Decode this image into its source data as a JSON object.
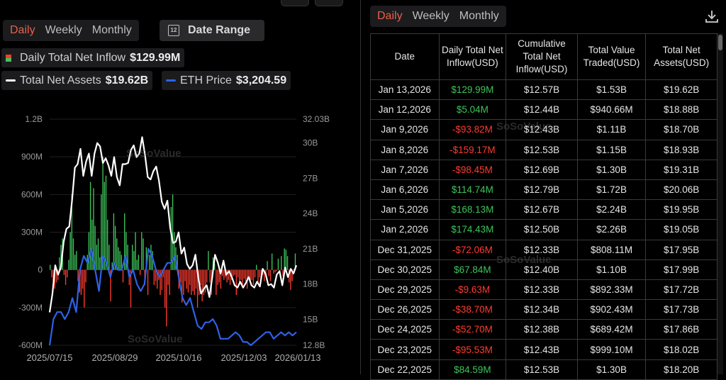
{
  "left_tabs": [
    "Daily",
    "Weekly",
    "Monthly"
  ],
  "right_tabs": [
    "Daily",
    "Weekly",
    "Monthly"
  ],
  "date_range_label": "Date Range",
  "legend": {
    "inflow_label": "Daily Total Net Inflow",
    "inflow_value": "$129.99M",
    "assets_label": "Total Net Assets",
    "assets_value": "$19.62B",
    "eth_label": "ETH Price",
    "eth_value": "$3,204.59"
  },
  "colors": {
    "positive": "#3ec45a",
    "negative": "#ff3b30",
    "eth_line": "#2e62e6",
    "assets_line": "#ffffff",
    "accent": "#e8604c"
  },
  "watermark": "SoSoValue",
  "chart_data": {
    "type": "bar+line",
    "x_ticks": [
      "2025/07/15",
      "2025/08/29",
      "2025/10/16",
      "2025/12/03",
      "2026/01/13"
    ],
    "y_left_ticks": [
      "1.2B",
      "900M",
      "600M",
      "300M",
      "0",
      "-300M",
      "-600M"
    ],
    "y_left_range": [
      -600,
      1200
    ],
    "y_right_ticks": [
      "32.03B",
      "30B",
      "27B",
      "24B",
      "21B",
      "18B",
      "15B",
      "12.8B"
    ],
    "y_right_range": [
      12.8,
      32.03
    ],
    "daily_net_inflow_musd": [
      40,
      -60,
      -90,
      -150,
      -100,
      -80,
      100,
      200,
      250,
      -40,
      -120,
      -60,
      80,
      300,
      600,
      250,
      120,
      150,
      -90,
      -180,
      -200,
      -150,
      -300,
      -100,
      120,
      300,
      700,
      400,
      650,
      350,
      200,
      250,
      100,
      600,
      900,
      700,
      750,
      400,
      200,
      -250,
      60,
      450,
      350,
      250,
      180,
      150,
      120,
      -100,
      450,
      300,
      200,
      -120,
      -300,
      200,
      150,
      300,
      80,
      120,
      -40,
      300,
      250,
      -120,
      180,
      -200,
      120,
      200,
      150,
      -120,
      -90,
      -150,
      -80,
      -200,
      -160,
      -60,
      -300,
      -450,
      -120,
      -200,
      500,
      600,
      300,
      180,
      120,
      -150,
      -100,
      -260,
      -200,
      -90,
      -150,
      -180,
      -120,
      -200,
      -170,
      -200,
      -150,
      -300,
      -200,
      -120,
      -250,
      -200,
      -180,
      -100,
      150,
      -100,
      -200,
      100,
      50,
      -200,
      -120,
      -100,
      -150,
      -50,
      -80,
      -60,
      -100,
      -80,
      -120,
      -80,
      -50,
      -40,
      -200,
      -60,
      -100,
      -80,
      -120,
      -70,
      -90,
      -150,
      -60,
      -90,
      -80,
      -120,
      -60,
      40,
      -110,
      -60,
      -80,
      -40,
      -90,
      -50,
      70,
      -50,
      -90,
      130,
      -30,
      -20,
      -10,
      90,
      -10,
      110,
      -50,
      170,
      160,
      110,
      -100,
      -160,
      -90,
      5,
      130
    ],
    "total_net_assets_b": [
      15.6,
      17.2,
      19.6,
      18.8,
      19.4,
      21.6,
      22.7,
      22.9,
      25.1,
      27.9,
      28.2,
      29.5,
      27.2,
      28.4,
      29.1,
      27.2,
      29.1,
      30.0,
      29.7,
      28.3,
      28.7,
      28.1,
      27.2,
      28.8,
      27.1,
      26.4,
      28.2,
      28.2,
      28.3,
      29.4,
      29.8,
      28.8,
      29.1,
      30.5,
      29.0,
      27.1,
      26.9,
      27.6,
      28.0,
      26.8,
      25.0,
      24.4,
      25.1,
      22.8,
      21.5,
      21.6,
      22.4,
      20.6,
      21.1,
      19.7,
      19.3,
      19.6,
      20.5,
      18.6,
      17.2,
      17.6,
      17.9,
      16.9,
      18.6,
      20.5,
      19.8,
      18.9,
      20.0,
      18.8,
      19.1,
      18.6,
      17.9,
      17.7,
      18.2,
      17.7,
      18.1,
      18.6,
      17.9,
      17.7,
      18.2,
      17.8,
      19.3,
      18.9,
      17.9,
      18.0,
      17.7,
      18.8,
      19.1,
      17.9,
      19.4,
      18.6,
      19.3,
      18.9,
      19.6
    ],
    "eth_price_k": [
      2.8,
      3.6,
      3.7,
      3.7,
      3.6,
      3.7,
      3.9,
      3.7,
      4.3,
      4.5,
      4.4,
      4.6,
      4.3,
      4.0,
      4.5,
      4.4,
      4.2,
      4.4,
      4.3,
      4.3,
      4.5,
      4.2,
      4.3,
      4.1,
      4.0,
      4.1,
      4.6,
      4.5,
      4.3,
      4.2,
      4.3,
      4.4,
      4.4,
      4.5,
      4.2,
      3.9,
      3.8,
      3.9,
      3.7,
      3.4,
      3.3,
      3.5,
      3.5,
      3.6,
      3.4,
      3.0,
      3.0,
      3.0,
      3.1,
      3.2,
      3.1,
      2.9,
      2.9,
      2.8,
      2.9,
      3.0,
      3.1,
      3.2,
      3.2,
      3.0,
      3.1,
      3.2,
      3.1,
      3.2,
      3.1,
      3.2
    ],
    "table": {
      "columns": [
        "Date",
        "Daily Total Net Inflow(USD)",
        "Cumulative Total Net Inflow(USD)",
        "Total Value Traded(USD)",
        "Total Net Assets(USD)"
      ],
      "rows": [
        {
          "date": "Jan 13,2026",
          "inflow": "$129.99M",
          "sign": "pos",
          "cum": "$12.57B",
          "traded": "$1.53B",
          "assets": "$19.62B"
        },
        {
          "date": "Jan 12,2026",
          "inflow": "$5.04M",
          "sign": "pos",
          "cum": "$12.44B",
          "traded": "$940.66M",
          "assets": "$18.88B"
        },
        {
          "date": "Jan 9,2026",
          "inflow": "-$93.82M",
          "sign": "neg",
          "cum": "$12.43B",
          "traded": "$1.11B",
          "assets": "$18.70B"
        },
        {
          "date": "Jan 8,2026",
          "inflow": "-$159.17M",
          "sign": "neg",
          "cum": "$12.53B",
          "traded": "$1.15B",
          "assets": "$18.93B"
        },
        {
          "date": "Jan 7,2026",
          "inflow": "-$98.45M",
          "sign": "neg",
          "cum": "$12.69B",
          "traded": "$1.30B",
          "assets": "$19.31B"
        },
        {
          "date": "Jan 6,2026",
          "inflow": "$114.74M",
          "sign": "pos",
          "cum": "$12.79B",
          "traded": "$1.72B",
          "assets": "$20.06B"
        },
        {
          "date": "Jan 5,2026",
          "inflow": "$168.13M",
          "sign": "pos",
          "cum": "$12.67B",
          "traded": "$2.24B",
          "assets": "$19.95B"
        },
        {
          "date": "Jan 2,2026",
          "inflow": "$174.43M",
          "sign": "pos",
          "cum": "$12.50B",
          "traded": "$2.26B",
          "assets": "$19.05B"
        },
        {
          "date": "Dec 31,2025",
          "inflow": "-$72.06M",
          "sign": "neg",
          "cum": "$12.33B",
          "traded": "$808.11M",
          "assets": "$17.95B"
        },
        {
          "date": "Dec 30,2025",
          "inflow": "$67.84M",
          "sign": "pos",
          "cum": "$12.40B",
          "traded": "$1.10B",
          "assets": "$17.99B"
        },
        {
          "date": "Dec 29,2025",
          "inflow": "-$9.63M",
          "sign": "neg",
          "cum": "$12.33B",
          "traded": "$892.33M",
          "assets": "$17.72B"
        },
        {
          "date": "Dec 26,2025",
          "inflow": "-$38.70M",
          "sign": "neg",
          "cum": "$12.34B",
          "traded": "$902.43M",
          "assets": "$17.73B"
        },
        {
          "date": "Dec 24,2025",
          "inflow": "-$52.70M",
          "sign": "neg",
          "cum": "$12.38B",
          "traded": "$689.42M",
          "assets": "$17.86B"
        },
        {
          "date": "Dec 23,2025",
          "inflow": "-$95.53M",
          "sign": "neg",
          "cum": "$12.43B",
          "traded": "$999.10M",
          "assets": "$18.02B"
        },
        {
          "date": "Dec 22,2025",
          "inflow": "$84.59M",
          "sign": "pos",
          "cum": "$12.53B",
          "traded": "$1.30B",
          "assets": "$18.20B"
        }
      ]
    }
  }
}
